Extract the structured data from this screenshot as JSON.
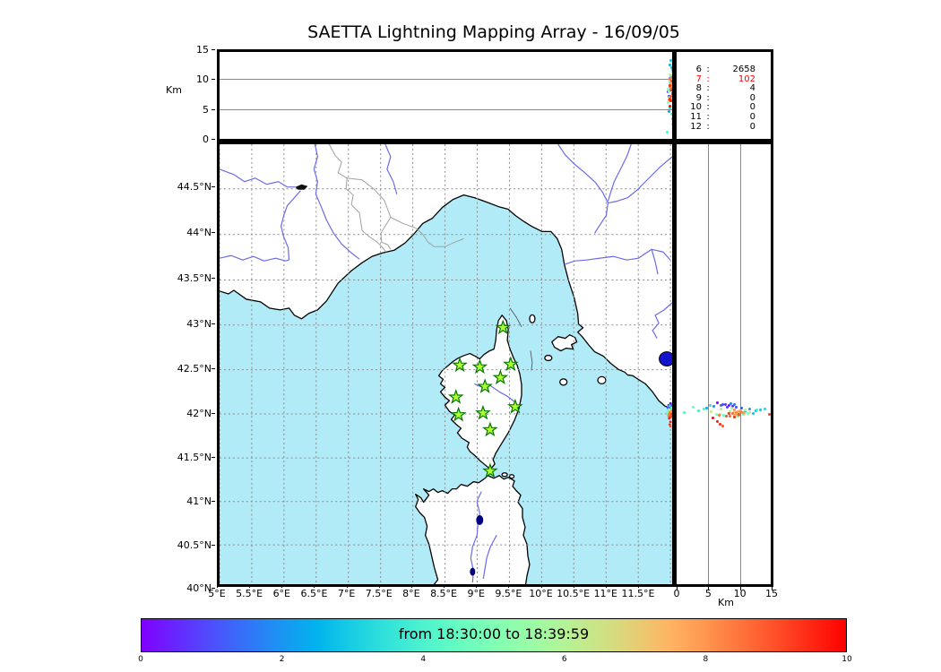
{
  "title": "SAETTA Lightning Mapping Array - 16/09/05",
  "colors": {
    "sea": "#b2ebf8",
    "land": "#ffffff",
    "coast": "#000000",
    "river": "#6b6be8",
    "admin_border": "#a0a0a0",
    "grid": "#8a8a8a",
    "station_fill": "#adff2f",
    "station_edge": "#007800",
    "legend_highlight": "#ff0000",
    "lake_blue": "#1414cc",
    "lake_dark": "#000080"
  },
  "alt_axis": {
    "label": "Km",
    "ticks": [
      "0",
      "5",
      "10",
      "15"
    ],
    "tick_values": [
      0,
      5,
      10,
      15
    ],
    "range": [
      0,
      15
    ],
    "gridlines": [
      5,
      10
    ]
  },
  "map_axis": {
    "lon_tick_labels": [
      "5°E",
      "5.5°E",
      "6°E",
      "6.5°E",
      "7°E",
      "7.5°E",
      "8°E",
      "8.5°E",
      "9°E",
      "9.5°E",
      "10°E",
      "10.5°E",
      "11°E",
      "11.5°E"
    ],
    "lon_tick_values": [
      5,
      5.5,
      6,
      6.5,
      7,
      7.5,
      8,
      8.5,
      9,
      9.5,
      10,
      10.5,
      11,
      11.5
    ],
    "lon_grid_values": [
      5,
      5.5,
      6,
      6.5,
      7,
      7.5,
      8,
      8.5,
      9,
      9.5,
      10,
      10.5,
      11,
      11.5,
      12
    ],
    "lat_tick_labels": [
      "44.5°N",
      "44°N",
      "43.5°N",
      "43°N",
      "42.5°N",
      "42°N",
      "41.5°N",
      "41°N",
      "40.5°N",
      "40°N"
    ],
    "lat_tick_values": [
      44.5,
      44,
      43.5,
      43,
      42.5,
      42,
      41.5,
      41,
      40.5,
      40
    ],
    "lon_range": [
      5,
      12.03
    ],
    "lat_range": [
      40,
      44.94
    ]
  },
  "right_axis": {
    "label": "Km",
    "ticks": [
      "0",
      "5",
      "10",
      "15"
    ],
    "tick_values": [
      0,
      5,
      10,
      15
    ],
    "range": [
      0,
      15
    ],
    "gridlines": [
      5,
      10
    ]
  },
  "legend": {
    "rows": [
      {
        "label": "6",
        "value": "2658",
        "highlight": false
      },
      {
        "label": "7",
        "value": "102",
        "highlight": true
      },
      {
        "label": "8",
        "value": "4",
        "highlight": false
      },
      {
        "label": "9",
        "value": "0",
        "highlight": false
      },
      {
        "label": "10",
        "value": "0",
        "highlight": false
      },
      {
        "label": "11",
        "value": "0",
        "highlight": false
      },
      {
        "label": "12",
        "value": "0",
        "highlight": false
      }
    ]
  },
  "colorbar": {
    "label": "from 18:30:00 to 18:39:59",
    "tick_labels": [
      "0",
      "2",
      "4",
      "6",
      "8",
      "10"
    ],
    "tick_values": [
      0,
      2,
      4,
      6,
      8,
      10
    ],
    "range": [
      0,
      10
    ],
    "colormap": "rainbow"
  },
  "chart_data": {
    "type": "scatter",
    "title": "SAETTA Lightning Mapping Array - 16/09/05",
    "panels": [
      {
        "name": "altitude-vs-longitude",
        "x": "longitude_deg_E",
        "xlim": [
          5,
          12.03
        ],
        "y": "altitude_km",
        "ylim": [
          0,
          15
        ]
      },
      {
        "name": "map-lat-vs-lon",
        "x": "longitude_deg_E",
        "xlim": [
          5,
          12.03
        ],
        "y": "latitude_deg_N",
        "ylim": [
          40,
          44.94
        ],
        "projection": "mercator"
      },
      {
        "name": "altitude-vs-latitude",
        "x": "altitude_km",
        "xlim": [
          0,
          15
        ],
        "y": "latitude_deg_N",
        "ylim": [
          40,
          44.94
        ]
      }
    ],
    "color_scale": {
      "label": "from 18:30:00 to 18:39:59",
      "range": [
        0,
        10
      ],
      "colormap": "rainbow"
    },
    "stations_lon_lat": [
      [
        9.4,
        42.97
      ],
      [
        8.73,
        42.55
      ],
      [
        9.04,
        42.53
      ],
      [
        9.52,
        42.56
      ],
      [
        9.36,
        42.41
      ],
      [
        9.12,
        42.31
      ],
      [
        8.67,
        42.19
      ],
      [
        9.59,
        42.08
      ],
      [
        8.71,
        41.99
      ],
      [
        9.09,
        42.01
      ],
      [
        9.2,
        41.82
      ],
      [
        9.2,
        41.35
      ]
    ],
    "source_counts_by_stations": {
      "6": 2658,
      "7": 102,
      "8": 4,
      "9": 0,
      "10": 0,
      "11": 0,
      "12": 0
    },
    "flash_points_lon_lat_alt_t": [
      [
        12.0,
        42.09,
        8.2,
        0.3
      ],
      [
        12.02,
        42.1,
        7.6,
        0.7
      ],
      [
        11.98,
        42.08,
        8.8,
        0.5
      ],
      [
        12.01,
        42.07,
        9.4,
        1.1
      ],
      [
        12.04,
        42.09,
        6.9,
        1.4
      ],
      [
        11.97,
        42.1,
        7.2,
        0.9
      ],
      [
        12.03,
        42.11,
        8.5,
        1.7
      ],
      [
        11.99,
        42.06,
        10.2,
        1.2
      ],
      [
        12.05,
        42.08,
        5.8,
        1.9
      ],
      [
        12.0,
        42.12,
        6.4,
        0.2
      ],
      [
        12.06,
        42.1,
        9.0,
        1.5
      ],
      [
        11.96,
        42.07,
        7.9,
        0.8
      ],
      [
        12.02,
        42.05,
        11.5,
        2.2
      ],
      [
        11.98,
        42.03,
        12.4,
        2.6
      ],
      [
        12.0,
        42.04,
        13.2,
        2.9
      ],
      [
        12.04,
        42.02,
        10.8,
        3.1
      ],
      [
        11.97,
        42.06,
        4.6,
        2.4
      ],
      [
        12.07,
        42.05,
        13.8,
        3.3
      ],
      [
        12.01,
        42.0,
        12.0,
        2.8
      ],
      [
        11.99,
        42.09,
        5.2,
        3.4
      ],
      [
        12.03,
        42.03,
        3.4,
        3.7
      ],
      [
        11.95,
        42.01,
        1.2,
        4.1
      ],
      [
        12.0,
        41.99,
        10.5,
        4.4
      ],
      [
        12.05,
        42.0,
        11.2,
        4.8
      ],
      [
        11.98,
        41.97,
        9.6,
        4.2
      ],
      [
        12.02,
        42.07,
        2.6,
        4.6
      ],
      [
        12.06,
        42.04,
        12.6,
        3.9
      ],
      [
        11.96,
        42.02,
        8.4,
        4.9
      ],
      [
        12.01,
        42.05,
        4.2,
        4.0
      ],
      [
        12.04,
        41.98,
        7.4,
        4.5
      ],
      [
        12.0,
        42.02,
        9.8,
        5.2
      ],
      [
        11.97,
        42.0,
        8.0,
        5.6
      ],
      [
        12.03,
        41.99,
        6.8,
        6.1
      ],
      [
        11.99,
        42.04,
        10.8,
        5.9
      ],
      [
        12.05,
        42.02,
        5.4,
        6.3
      ],
      [
        12.01,
        41.96,
        9.2,
        5.4
      ],
      [
        11.98,
        42.05,
        7.0,
        6.0
      ],
      [
        12.04,
        42.06,
        8.6,
        5.7
      ],
      [
        12.02,
        42.01,
        11.4,
        6.4
      ],
      [
        11.96,
        41.99,
        6.2,
        5.1
      ],
      [
        12.0,
        42.0,
        9.5,
        6.8
      ],
      [
        12.02,
        42.02,
        10.1,
        7.0
      ],
      [
        11.98,
        42.01,
        8.9,
        7.2
      ],
      [
        12.01,
        42.03,
        9.9,
        6.9
      ],
      [
        12.03,
        42.0,
        10.6,
        7.4
      ],
      [
        11.99,
        41.98,
        9.1,
        7.1
      ],
      [
        12.0,
        41.99,
        9.3,
        7.8
      ],
      [
        12.02,
        41.98,
        9.8,
        8.0
      ],
      [
        12.01,
        42.01,
        10.3,
        8.3
      ],
      [
        11.98,
        42.0,
        8.8,
        8.6
      ],
      [
        12.03,
        42.02,
        9.6,
        7.9
      ],
      [
        11.99,
        42.02,
        10.0,
        8.4
      ],
      [
        12.02,
        42.04,
        9.0,
        8.1
      ],
      [
        12.0,
        41.97,
        8.4,
        8.7
      ],
      [
        12.04,
        42.01,
        9.4,
        8.2
      ],
      [
        11.97,
        41.98,
        6.6,
        8.5
      ],
      [
        12.01,
        41.99,
        9.7,
        9.1
      ],
      [
        11.99,
        41.96,
        9.0,
        9.4
      ],
      [
        12.03,
        41.97,
        7.8,
        9.0
      ],
      [
        12.0,
        41.91,
        6.4,
        9.6
      ],
      [
        12.05,
        41.99,
        14.6,
        9.2
      ],
      [
        11.98,
        41.95,
        5.6,
        9.8
      ],
      [
        12.02,
        42.0,
        8.2,
        9.3
      ],
      [
        11.99,
        41.88,
        6.8,
        9.5
      ],
      [
        12.0,
        41.86,
        7.2,
        8.9
      ]
    ]
  }
}
